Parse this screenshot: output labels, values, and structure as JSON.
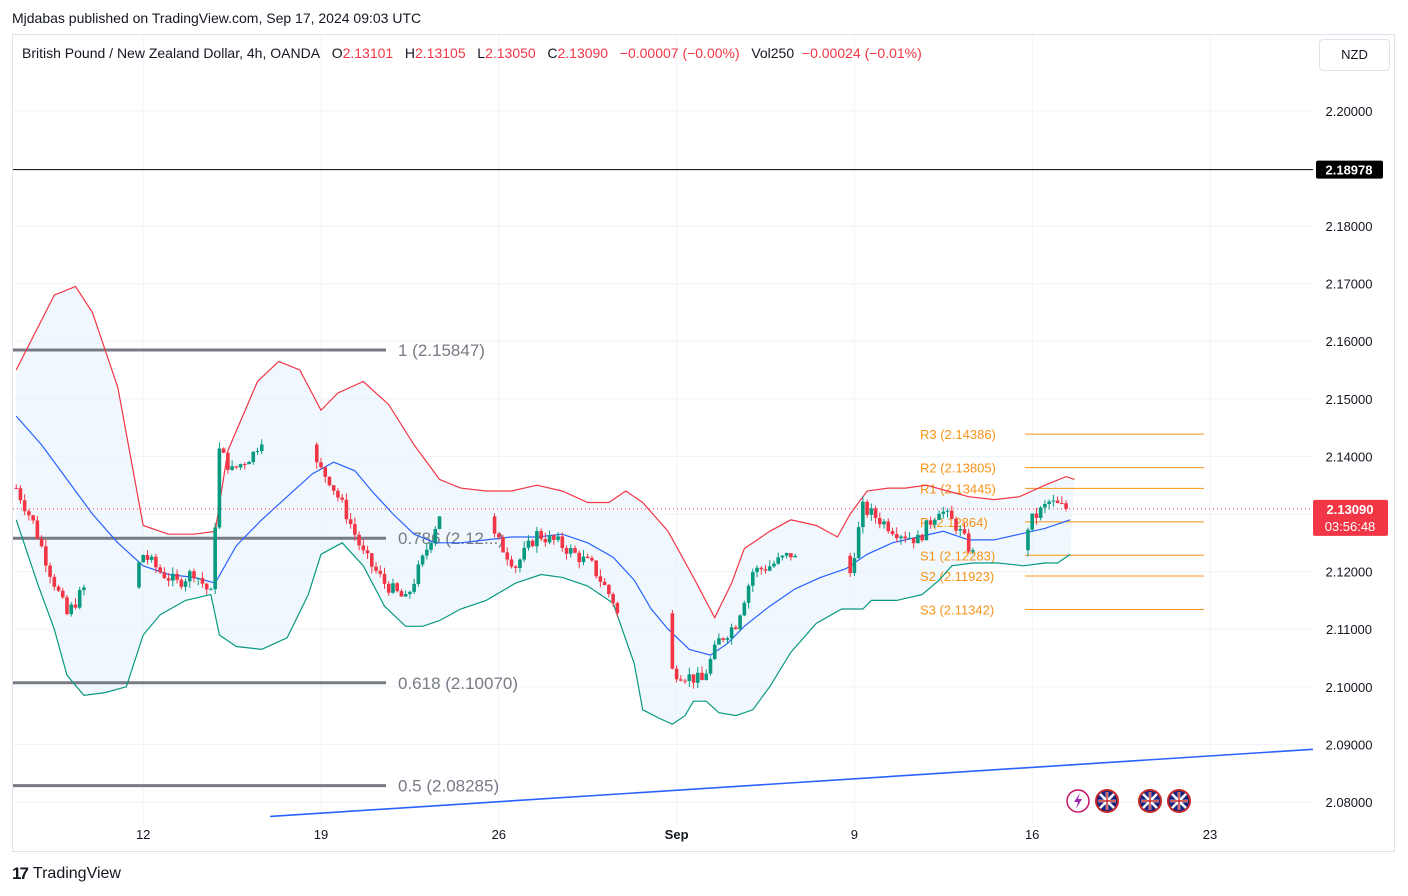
{
  "publisher_line": "Mjdabas published on TradingView.com, Sep 17, 2024 09:03 UTC",
  "legend": {
    "symbol": "British Pound / New Zealand Dollar, 4h, OANDA",
    "o_label": "O",
    "o_value": "2.13101",
    "h_label": "H",
    "h_value": "2.13105",
    "l_label": "L",
    "l_value": "2.13050",
    "c_label": "C",
    "c_value": "2.13090",
    "change": "−0.00007 (−0.00%)",
    "vol_label": "Vol250",
    "vol_value": "−0.00024 (−0.01%)"
  },
  "currency_button": "NZD",
  "footer": {
    "logo": "17",
    "brand": "TradingView"
  },
  "colors": {
    "up": "#089981",
    "down": "#f23645",
    "bb_upper": "#f23645",
    "bb_lower": "#089981",
    "bb_basis": "#2962ff",
    "bb_fill": "#e3f2fd",
    "fib": "#787b86",
    "pivot": "#f7931a",
    "trendline": "#2962ff"
  },
  "chart_data": {
    "type": "candlestick",
    "title": "British Pound / New Zealand Dollar, 4h, OANDA",
    "x_ticks": [
      "12",
      "19",
      "26",
      "Sep",
      "9",
      "16",
      "23"
    ],
    "y_ticks": [
      "2.20000",
      "2.18000",
      "2.17000",
      "2.16000",
      "2.15000",
      "2.14000",
      "2.13000",
      "2.12000",
      "2.11000",
      "2.10000",
      "2.09000",
      "2.08000"
    ],
    "ylim": [
      2.076,
      2.2165
    ],
    "last_price": {
      "value": 2.1309,
      "label": "2.13090",
      "countdown": "03:56:48"
    },
    "horizontal_level": {
      "value": 2.18978,
      "label": "2.18978"
    },
    "fib_levels": [
      {
        "ratio_label": "1 (2.15847)",
        "value": 2.15847
      },
      {
        "ratio_label": "0.786 (2.12...)",
        "value": 2.1258
      },
      {
        "ratio_label": "0.618 (2.10070)",
        "value": 2.1007
      },
      {
        "ratio_label": "0.5 (2.08285)",
        "value": 2.08285
      }
    ],
    "pivots": [
      {
        "label": "R3 (2.14386)",
        "value": 2.14386
      },
      {
        "label": "R2 (2.13805)",
        "value": 2.13805
      },
      {
        "label": "R1 (2.13445)",
        "value": 2.13445
      },
      {
        "label": "P (2.12864)",
        "value": 2.12864
      },
      {
        "label": "S1 (2.12283)",
        "value": 2.12283
      },
      {
        "label": "S2 (2.11923)",
        "value": 2.11923
      },
      {
        "label": "S3 (2.11342)",
        "value": 2.11342
      }
    ],
    "trendline": {
      "start": {
        "date": "Aug 17",
        "value": 2.0775
      },
      "end": {
        "date": "Sep 29",
        "value": 2.0897
      }
    },
    "price_anchors": [
      [
        "Aug 7 00:00",
        2.1345
      ],
      [
        "Aug 7 16:00",
        2.1285
      ],
      [
        "Aug 8 08:00",
        2.12
      ],
      [
        "Aug 9 00:00",
        2.1125
      ],
      [
        "Aug 9 16:00",
        2.117
      ],
      [
        "Aug 10 12:00",
        2.1195
      ],
      [
        "Aug 11 08:00",
        2.116
      ],
      [
        "Aug 12 00:00",
        2.123
      ],
      [
        "Aug 12 16:00",
        2.12
      ],
      [
        "Aug 13 08:00",
        2.118
      ],
      [
        "Aug 14 00:00",
        2.12
      ],
      [
        "Aug 14 16:00",
        2.116
      ],
      [
        "Aug 15 00:00",
        2.141
      ],
      [
        "Aug 15 12:00",
        2.1375
      ],
      [
        "Aug 16 08:00",
        2.1405
      ],
      [
        "Aug 17 00:00",
        2.146
      ],
      [
        "Aug 17 16:00",
        2.147
      ],
      [
        "Aug 18 12:00",
        2.14
      ],
      [
        "Aug 19 08:00",
        2.136
      ],
      [
        "Aug 20 00:00",
        2.13
      ],
      [
        "Aug 20 16:00",
        2.123
      ],
      [
        "Aug 21 12:00",
        2.118
      ],
      [
        "Aug 22 08:00",
        2.115
      ],
      [
        "Aug 23 00:00",
        2.122
      ],
      [
        "Aug 23 16:00",
        2.13
      ],
      [
        "Aug 24 12:00",
        2.132
      ],
      [
        "Aug 25 08:00",
        2.129
      ],
      [
        "Aug 26 00:00",
        2.125
      ],
      [
        "Aug 26 16:00",
        2.121
      ],
      [
        "Aug 27 12:00",
        2.1265
      ],
      [
        "Aug 28 08:00",
        2.125
      ],
      [
        "Aug 29 00:00",
        2.123
      ],
      [
        "Aug 29 16:00",
        2.121
      ],
      [
        "Aug 30 12:00",
        2.115
      ],
      [
        "Aug 31 08:00",
        2.103
      ],
      [
        "Sep 1 00:00",
        2.1
      ],
      [
        "Sep 1 16:00",
        2.103
      ],
      [
        "Sep 2 08:00",
        2.102
      ],
      [
        "Sep 3 00:00",
        2.101
      ],
      [
        "Sep 3 16:00",
        2.108
      ],
      [
        "Sep 4 08:00",
        2.111
      ],
      [
        "Sep 5 00:00",
        2.12
      ],
      [
        "Sep 5 16:00",
        2.121
      ],
      [
        "Sep 6 12:00",
        2.123
      ],
      [
        "Sep 7 08:00",
        2.119
      ],
      [
        "Sep 8 00:00",
        2.12
      ],
      [
        "Sep 8 16:00",
        2.116
      ],
      [
        "Sep 9 08:00",
        2.131
      ],
      [
        "Sep 10 00:00",
        2.129
      ],
      [
        "Sep 10 16:00",
        2.127
      ],
      [
        "Sep 11 12:00",
        2.1255
      ],
      [
        "Sep 12 08:00",
        2.131
      ],
      [
        "Sep 13 00:00",
        2.128
      ],
      [
        "Sep 13 16:00",
        2.123
      ],
      [
        "Sep 14 12:00",
        2.1255
      ],
      [
        "Sep 15 08:00",
        2.1245
      ],
      [
        "Sep 16 00:00",
        2.129
      ],
      [
        "Sep 16 16:00",
        2.132
      ],
      [
        "Sep 17 08:00",
        2.1309
      ]
    ],
    "bollinger": {
      "upper": [
        [
          "Aug 7 00:00",
          2.155
        ],
        [
          "Aug 8 12:00",
          2.168
        ],
        [
          "Aug 9 08:00",
          2.1695
        ],
        [
          "Aug 10 00:00",
          2.165
        ],
        [
          "Aug 11 00:00",
          2.152
        ],
        [
          "Aug 12 00:00",
          2.128
        ],
        [
          "Aug 13 00:00",
          2.1265
        ],
        [
          "Aug 14 00:00",
          2.1265
        ],
        [
          "Aug 14 20:00",
          2.127
        ],
        [
          "Aug 15 08:00",
          2.141
        ],
        [
          "Aug 16 12:00",
          2.153
        ],
        [
          "Aug 17 08:00",
          2.1565
        ],
        [
          "Aug 18 04:00",
          2.155
        ],
        [
          "Aug 19 00:00",
          2.148
        ],
        [
          "Aug 19 16:00",
          2.151
        ],
        [
          "Aug 20 16:00",
          2.153
        ],
        [
          "Aug 21 16:00",
          2.149
        ],
        [
          "Aug 22 16:00",
          2.142
        ],
        [
          "Aug 23 16:00",
          2.136
        ],
        [
          "Aug 24 12:00",
          2.1345
        ],
        [
          "Aug 25 12:00",
          2.134
        ],
        [
          "Aug 26 12:00",
          2.134
        ],
        [
          "Aug 27 12:00",
          2.135
        ],
        [
          "Aug 28 12:00",
          2.134
        ],
        [
          "Aug 29 12:00",
          2.132
        ],
        [
          "Aug 30 08:00",
          2.132
        ],
        [
          "Aug 31 00:00",
          2.134
        ],
        [
          "Aug 31 16:00",
          2.132
        ],
        [
          "Sep 1 16:00",
          2.127
        ],
        [
          "Sep 2 16:00",
          2.119
        ],
        [
          "Sep 3 12:00",
          2.112
        ],
        [
          "Sep 4 04:00",
          2.118
        ],
        [
          "Sep 4 16:00",
          2.124
        ],
        [
          "Sep 5 16:00",
          2.127
        ],
        [
          "Sep 6 12:00",
          2.129
        ],
        [
          "Sep 7 12:00",
          2.128
        ],
        [
          "Sep 8 08:00",
          2.126
        ],
        [
          "Sep 8 20:00",
          2.13
        ],
        [
          "Sep 9 12:00",
          2.134
        ],
        [
          "Sep 10 08:00",
          2.1345
        ],
        [
          "Sep 11 00:00",
          2.1345
        ],
        [
          "Sep 11 20:00",
          2.135
        ],
        [
          "Sep 12 16:00",
          2.134
        ],
        [
          "Sep 13 12:00",
          2.133
        ],
        [
          "Sep 14 12:00",
          2.1325
        ],
        [
          "Sep 15 12:00",
          2.133
        ],
        [
          "Sep 16 12:00",
          2.135
        ],
        [
          "Sep 17 08:00",
          2.1365
        ],
        [
          "Sep 17 16:00",
          2.136
        ]
      ],
      "lower": [
        [
          "Aug 7 00:00",
          2.129
        ],
        [
          "Aug 7 20:00",
          2.118
        ],
        [
          "Aug 8 12:00",
          2.11
        ],
        [
          "Aug 9 00:00",
          2.102
        ],
        [
          "Aug 9 16:00",
          2.0985
        ],
        [
          "Aug 10 12:00",
          2.099
        ],
        [
          "Aug 11 08:00",
          2.1
        ],
        [
          "Aug 12 00:00",
          2.109
        ],
        [
          "Aug 12 16:00",
          2.1125
        ],
        [
          "Aug 13 16:00",
          2.115
        ],
        [
          "Aug 14 16:00",
          2.116
        ],
        [
          "Aug 15 00:00",
          2.109
        ],
        [
          "Aug 15 16:00",
          2.107
        ],
        [
          "Aug 16 16:00",
          2.1065
        ],
        [
          "Aug 17 16:00",
          2.1085
        ],
        [
          "Aug 18 12:00",
          2.116
        ],
        [
          "Aug 19 00:00",
          2.123
        ],
        [
          "Aug 19 20:00",
          2.125
        ],
        [
          "Aug 20 16:00",
          2.121
        ],
        [
          "Aug 21 12:00",
          2.114
        ],
        [
          "Aug 22 08:00",
          2.1105
        ],
        [
          "Aug 23 00:00",
          2.1105
        ],
        [
          "Aug 23 16:00",
          2.1115
        ],
        [
          "Aug 24 12:00",
          2.1135
        ],
        [
          "Aug 25 12:00",
          2.115
        ],
        [
          "Aug 26 16:00",
          2.118
        ],
        [
          "Aug 27 16:00",
          2.1195
        ],
        [
          "Aug 28 12:00",
          2.119
        ],
        [
          "Aug 29 12:00",
          2.1175
        ],
        [
          "Aug 30 12:00",
          2.1145
        ],
        [
          "Aug 31 08:00",
          2.104
        ],
        [
          "Aug 31 16:00",
          2.096
        ],
        [
          "Sep 1 08:00",
          2.0945
        ],
        [
          "Sep 1 20:00",
          2.0935
        ],
        [
          "Sep 2 08:00",
          2.095
        ],
        [
          "Sep 2 16:00",
          2.0975
        ],
        [
          "Sep 3 04:00",
          2.0975
        ],
        [
          "Sep 3 16:00",
          2.0955
        ],
        [
          "Sep 4 08:00",
          2.095
        ],
        [
          "Sep 5 00:00",
          2.096
        ],
        [
          "Sep 5 16:00",
          2.1
        ],
        [
          "Sep 6 12:00",
          2.106
        ],
        [
          "Sep 7 12:00",
          2.111
        ],
        [
          "Sep 8 12:00",
          2.1135
        ],
        [
          "Sep 9 08:00",
          2.1135
        ],
        [
          "Sep 9 16:00",
          2.115
        ],
        [
          "Sep 10 16:00",
          2.115
        ],
        [
          "Sep 11 16:00",
          2.116
        ],
        [
          "Sep 12 08:00",
          2.1185
        ],
        [
          "Sep 12 20:00",
          2.121
        ],
        [
          "Sep 13 16:00",
          2.1215
        ],
        [
          "Sep 14 16:00",
          2.1215
        ],
        [
          "Sep 15 16:00",
          2.121
        ],
        [
          "Sep 16 12:00",
          2.1215
        ],
        [
          "Sep 17 00:00",
          2.1215
        ],
        [
          "Sep 17 12:00",
          2.123
        ]
      ],
      "basis": [
        [
          "Aug 7 00:00",
          2.147
        ],
        [
          "Aug 8 00:00",
          2.142
        ],
        [
          "Aug 9 00:00",
          2.136
        ],
        [
          "Aug 10 00:00",
          2.13
        ],
        [
          "Aug 11 00:00",
          2.125
        ],
        [
          "Aug 12 00:00",
          2.121
        ],
        [
          "Aug 13 00:00",
          2.1195
        ],
        [
          "Aug 14 00:00",
          2.119
        ],
        [
          "Aug 14 20:00",
          2.118
        ],
        [
          "Aug 15 16:00",
          2.1245
        ],
        [
          "Aug 16 16:00",
          2.129
        ],
        [
          "Aug 17 16:00",
          2.133
        ],
        [
          "Aug 18 16:00",
          2.137
        ],
        [
          "Aug 19 12:00",
          2.139
        ],
        [
          "Aug 20 08:00",
          2.1375
        ],
        [
          "Aug 21 00:00",
          2.134
        ],
        [
          "Aug 21 20:00",
          2.13
        ],
        [
          "Aug 22 16:00",
          2.1265
        ],
        [
          "Aug 23 12:00",
          2.125
        ],
        [
          "Aug 24 12:00",
          2.125
        ],
        [
          "Aug 25 12:00",
          2.1255
        ],
        [
          "Aug 26 12:00",
          2.126
        ],
        [
          "Aug 27 12:00",
          2.126
        ],
        [
          "Aug 28 12:00",
          2.1265
        ],
        [
          "Aug 29 12:00",
          2.125
        ],
        [
          "Aug 30 12:00",
          2.1225
        ],
        [
          "Aug 31 08:00",
          2.1185
        ],
        [
          "Sep 1 00:00",
          2.1135
        ],
        [
          "Sep 1 16:00",
          2.11
        ],
        [
          "Sep 2 12:00",
          2.1065
        ],
        [
          "Sep 3 08:00",
          2.1055
        ],
        [
          "Sep 4 00:00",
          2.1075
        ],
        [
          "Sep 4 16:00",
          2.1105
        ],
        [
          "Sep 5 16:00",
          2.114
        ],
        [
          "Sep 6 16:00",
          2.117
        ],
        [
          "Sep 7 16:00",
          2.119
        ],
        [
          "Sep 8 16:00",
          2.1205
        ],
        [
          "Sep 9 12:00",
          2.123
        ],
        [
          "Sep 10 12:00",
          2.125
        ],
        [
          "Sep 11 12:00",
          2.126
        ],
        [
          "Sep 12 12:00",
          2.127
        ],
        [
          "Sep 13 12:00",
          2.1255
        ],
        [
          "Sep 14 12:00",
          2.1255
        ],
        [
          "Sep 15 12:00",
          2.1265
        ],
        [
          "Sep 16 12:00",
          2.1275
        ],
        [
          "Sep 17 12:00",
          2.129
        ]
      ]
    }
  }
}
